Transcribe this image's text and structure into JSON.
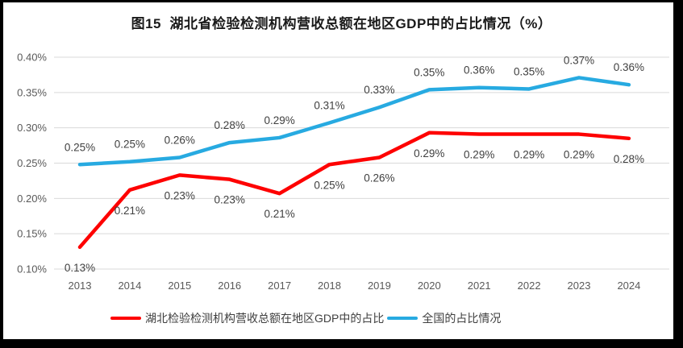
{
  "chart_data": {
    "type": "line",
    "title": "图15  湖北省检验检测机构营收总额在地区GDP中的占比情况（%）",
    "categories": [
      "2013",
      "2014",
      "2015",
      "2016",
      "2017",
      "2018",
      "2019",
      "2020",
      "2021",
      "2022",
      "2023",
      "2024"
    ],
    "series": [
      {
        "name": "湖北检验检测机构营收总额在地区GDP中的占比",
        "color": "#FE0000",
        "values": [
          0.13,
          0.21,
          0.23,
          0.23,
          0.21,
          0.25,
          0.26,
          0.29,
          0.29,
          0.29,
          0.29,
          0.28
        ],
        "plot_values": [
          0.131,
          0.212,
          0.233,
          0.227,
          0.207,
          0.248,
          0.258,
          0.293,
          0.291,
          0.291,
          0.291,
          0.285
        ],
        "point_labels": [
          "0.13%",
          "0.21%",
          "0.23%",
          "0.23%",
          "0.21%",
          "0.25%",
          "0.26%",
          "0.29%",
          "0.29%",
          "0.29%",
          "0.29%",
          "0.28%"
        ],
        "label_position": "below"
      },
      {
        "name": "全国的占比情况",
        "color": "#27AAE1",
        "values": [
          0.25,
          0.25,
          0.26,
          0.28,
          0.29,
          0.31,
          0.33,
          0.35,
          0.36,
          0.35,
          0.37,
          0.36
        ],
        "plot_values": [
          0.248,
          0.252,
          0.258,
          0.279,
          0.286,
          0.307,
          0.329,
          0.354,
          0.357,
          0.355,
          0.371,
          0.361
        ],
        "point_labels": [
          "0.25%",
          "0.25%",
          "0.26%",
          "0.28%",
          "0.29%",
          "0.31%",
          "0.33%",
          "0.35%",
          "0.36%",
          "0.35%",
          "0.37%",
          "0.36%"
        ],
        "label_position": "above"
      }
    ],
    "y_axis": {
      "min": 0.1,
      "max": 0.4,
      "ticks": [
        0.4,
        0.35,
        0.3,
        0.25,
        0.2,
        0.15,
        0.1
      ],
      "tick_labels": [
        "0.40%",
        "0.35%",
        "0.30%",
        "0.25%",
        "0.20%",
        "0.15%",
        "0.10%"
      ]
    },
    "grid": true,
    "legend_position": "bottom",
    "colors": {
      "gridline": "#D9D9D9",
      "tick_text": "#595959",
      "data_label_text": "#404040"
    }
  }
}
